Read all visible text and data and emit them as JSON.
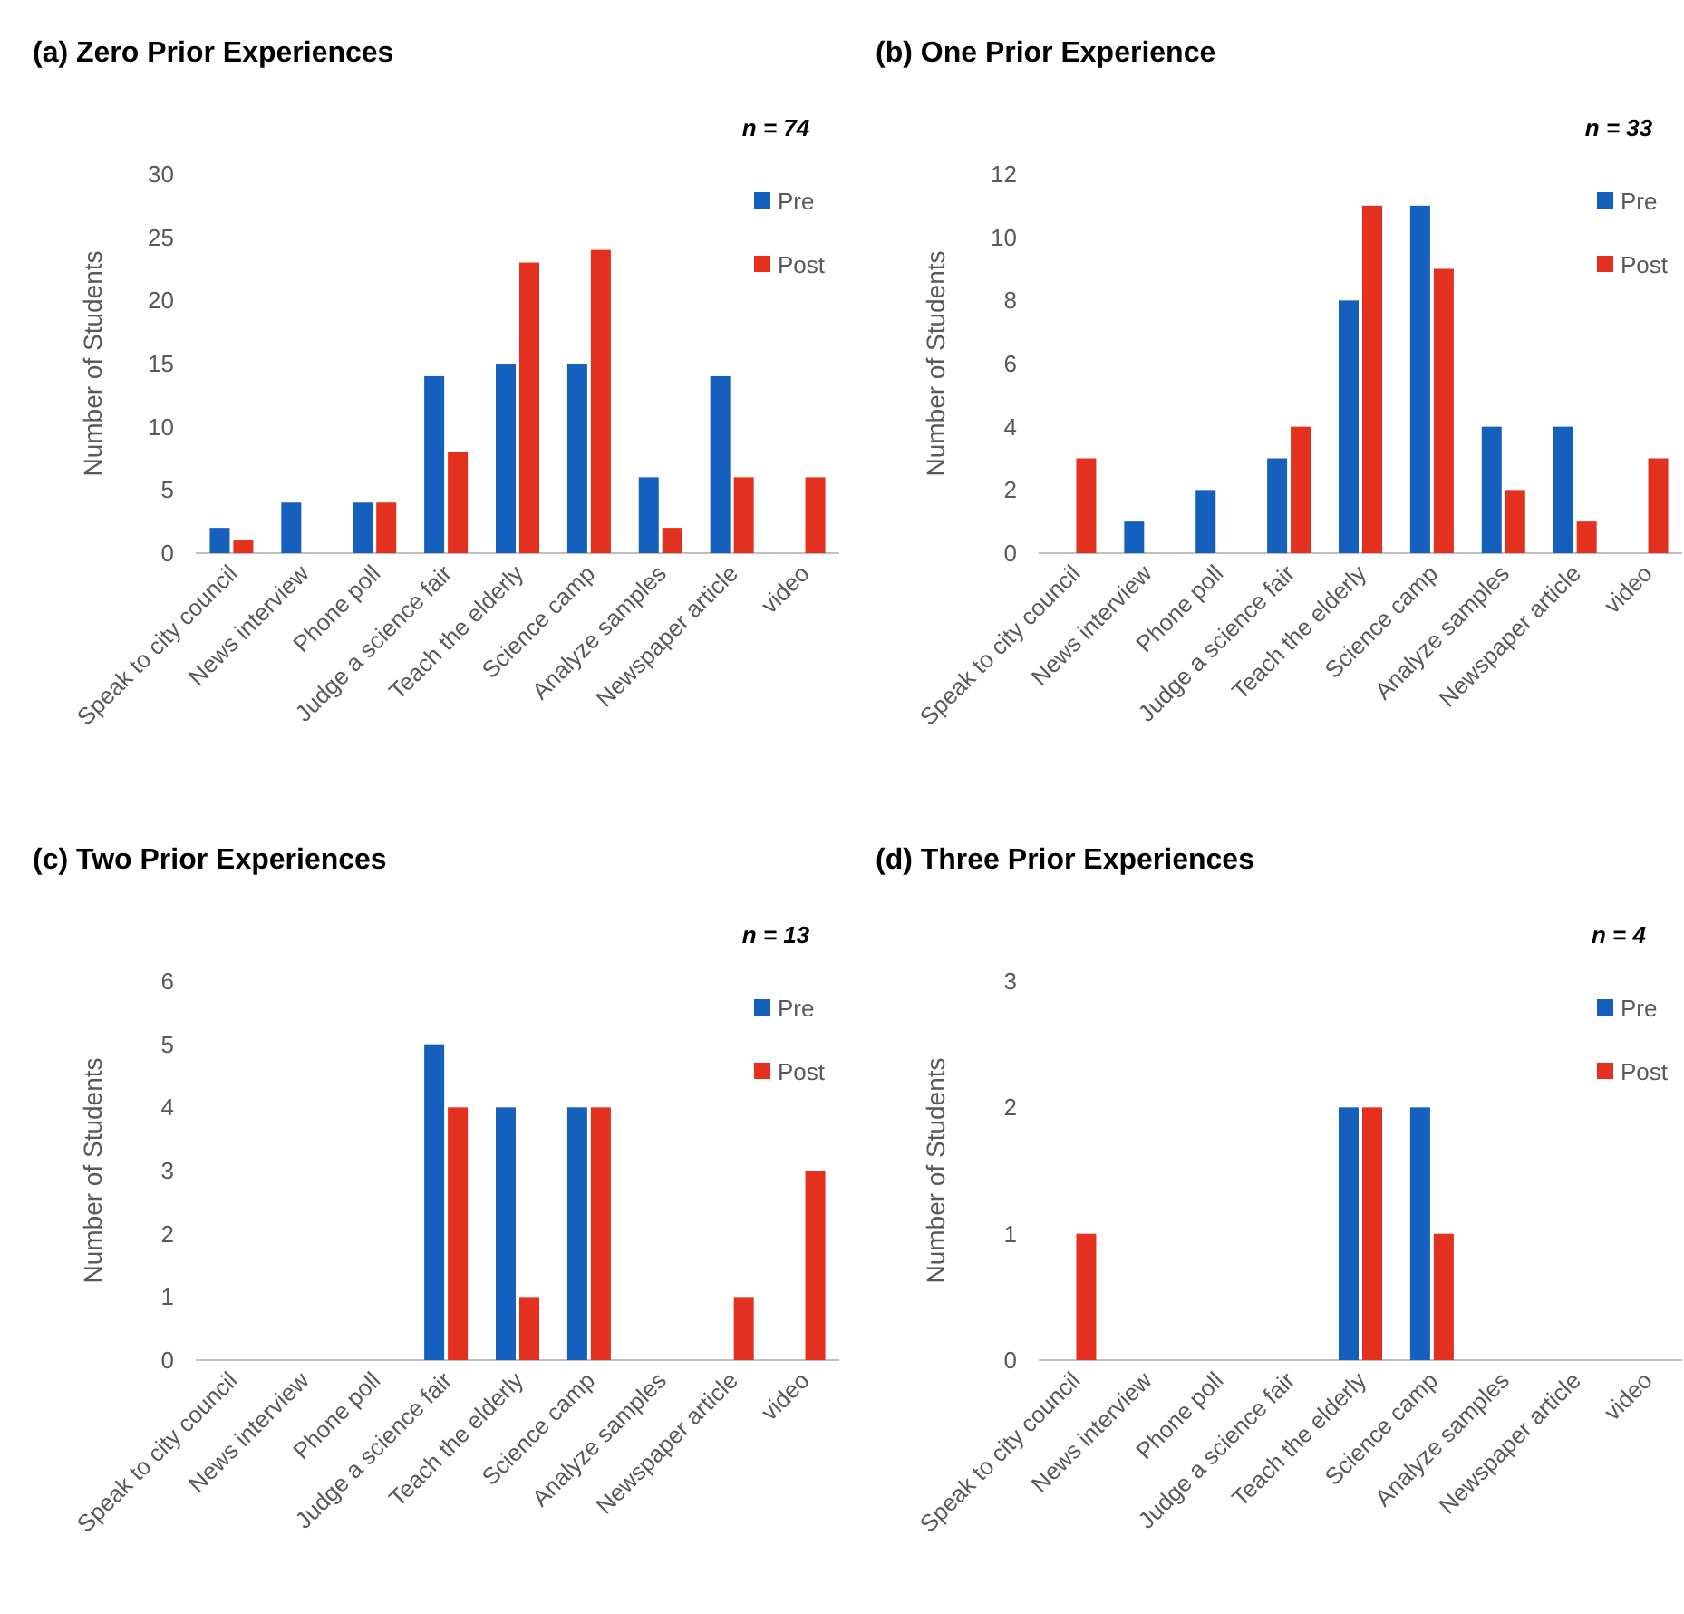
{
  "chart_data": [
    {
      "type": "bar",
      "title": "(a) Zero Prior Experiences",
      "ylabel": "Number of Students",
      "categories": [
        "Speak to city council",
        "News interview",
        "Phone poll",
        "Judge a science fair",
        "Teach the elderly",
        "Science camp",
        "Analyze samples",
        "Newspaper article",
        "video"
      ],
      "ylim": [
        0,
        30
      ],
      "yticks": [
        0,
        5,
        10,
        15,
        20,
        25,
        30
      ],
      "legend": "top right",
      "annotations": [
        "n = 74"
      ],
      "series": [
        {
          "name": "Pre",
          "color": "#1560bd",
          "values": [
            2,
            4,
            4,
            14,
            15,
            15,
            6,
            14,
            null
          ]
        },
        {
          "name": "Post",
          "color": "#e3301f",
          "values": [
            1,
            null,
            4,
            8,
            23,
            24,
            2,
            6,
            6
          ]
        }
      ]
    },
    {
      "type": "bar",
      "title": "(b) One Prior Experience",
      "ylabel": "Number of Students",
      "categories": [
        "Speak to city council",
        "News interview",
        "Phone poll",
        "Judge a science fair",
        "Teach the elderly",
        "Science camp",
        "Analyze samples",
        "Newspaper article",
        "video"
      ],
      "ylim": [
        0,
        12
      ],
      "yticks": [
        0,
        2,
        4,
        6,
        8,
        10,
        12
      ],
      "legend": "top right",
      "annotations": [
        "n = 33"
      ],
      "series": [
        {
          "name": "Pre",
          "color": "#1560bd",
          "values": [
            null,
            1,
            2,
            3,
            8,
            11,
            4,
            4,
            null
          ]
        },
        {
          "name": "Post",
          "color": "#e3301f",
          "values": [
            3,
            null,
            null,
            4,
            11,
            9,
            2,
            1,
            3
          ]
        }
      ]
    },
    {
      "type": "bar",
      "title": "(c) Two Prior Experiences",
      "ylabel": "Number of Students",
      "categories": [
        "Speak to city council",
        "News interview",
        "Phone poll",
        "Judge a science fair",
        "Teach the elderly",
        "Science camp",
        "Analyze samples",
        "Newspaper article",
        "video"
      ],
      "ylim": [
        0,
        6
      ],
      "yticks": [
        0,
        1,
        2,
        3,
        4,
        5,
        6
      ],
      "legend": "top right",
      "annotations": [
        "n = 13"
      ],
      "series": [
        {
          "name": "Pre",
          "color": "#1560bd",
          "values": [
            null,
            null,
            null,
            5,
            4,
            4,
            null,
            null,
            null
          ]
        },
        {
          "name": "Post",
          "color": "#e3301f",
          "values": [
            null,
            null,
            null,
            4,
            1,
            4,
            null,
            1,
            3
          ]
        }
      ]
    },
    {
      "type": "bar",
      "title": "(d) Three Prior Experiences",
      "ylabel": "Number of Students",
      "categories": [
        "Speak to city council",
        "News interview",
        "Phone poll",
        "Judge a science fair",
        "Teach the elderly",
        "Science camp",
        "Analyze samples",
        "Newspaper article",
        "video"
      ],
      "ylim": [
        0,
        3
      ],
      "yticks": [
        0,
        1,
        2,
        3
      ],
      "legend": "top right",
      "annotations": [
        "n = 4"
      ],
      "series": [
        {
          "name": "Pre",
          "color": "#1560bd",
          "values": [
            null,
            null,
            null,
            null,
            2,
            2,
            null,
            null,
            null
          ]
        },
        {
          "name": "Post",
          "color": "#e3301f",
          "values": [
            1,
            null,
            null,
            null,
            2,
            1,
            null,
            null,
            null
          ]
        }
      ]
    }
  ]
}
